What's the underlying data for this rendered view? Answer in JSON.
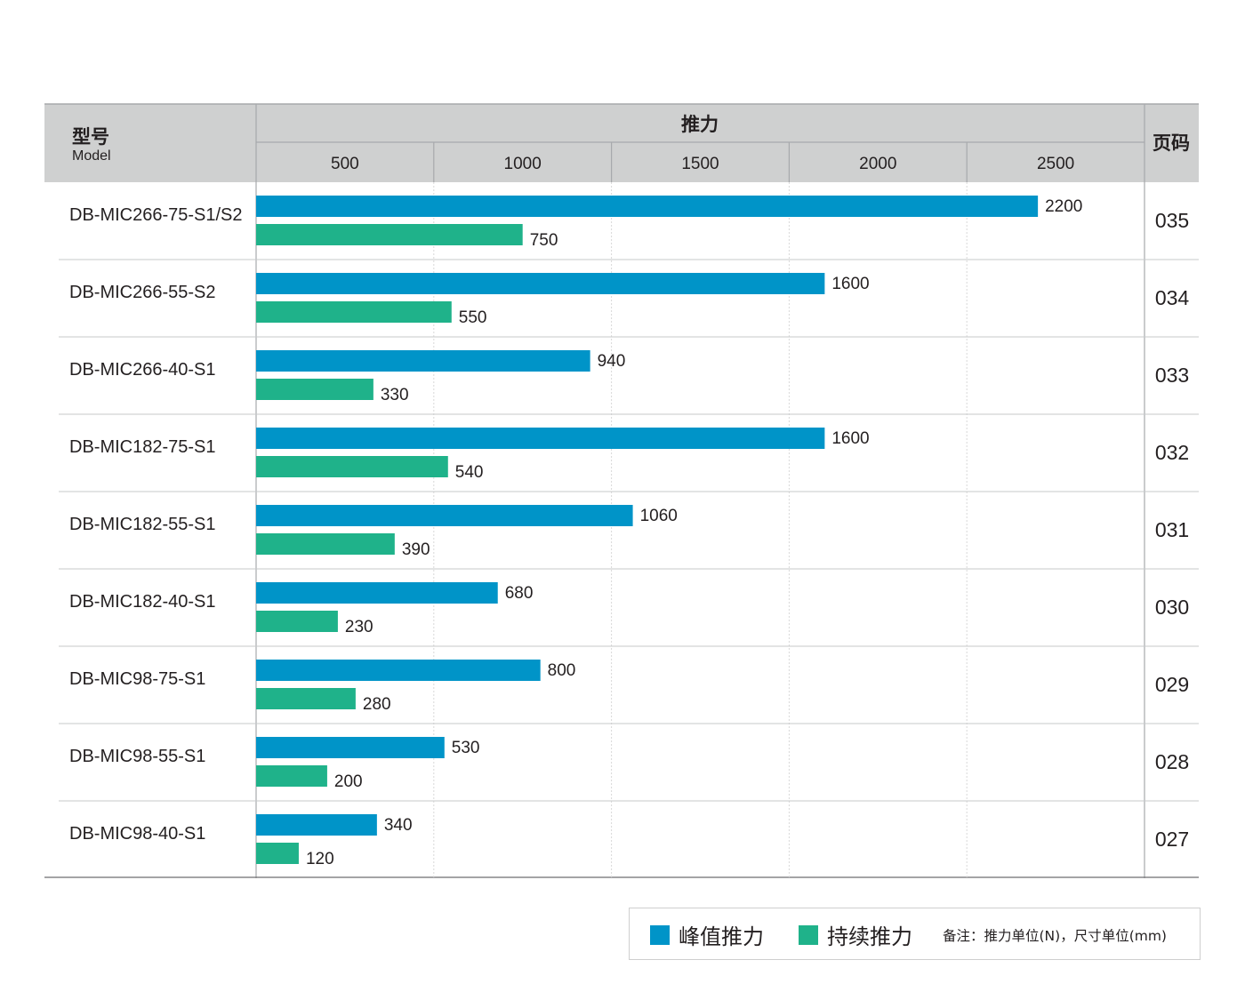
{
  "header": {
    "model_cn": "型号",
    "model_en": "Model",
    "thrust": "推力",
    "page": "页码"
  },
  "legend": {
    "peak": "峰值推力",
    "continuous": "持续推力",
    "note": "备注：推力单位(N)，尺寸单位(mm)"
  },
  "colors": {
    "peak": "#0094c8",
    "continuous": "#1fb28a",
    "header_bg": "#cfd0d0"
  },
  "chart_data": {
    "type": "bar",
    "orientation": "horizontal",
    "x_ticks": [
      500,
      1000,
      1500,
      2000,
      2500
    ],
    "xlim": [
      0,
      2500
    ],
    "grid": true,
    "series": [
      {
        "name": "峰值推力",
        "values": [
          2200,
          1600,
          940,
          1600,
          1060,
          680,
          800,
          530,
          340
        ]
      },
      {
        "name": "持续推力",
        "values": [
          750,
          550,
          330,
          540,
          390,
          230,
          280,
          200,
          120
        ]
      }
    ],
    "categories": [
      "DB-MIC266-75-S1/S2",
      "DB-MIC266-55-S2",
      "DB-MIC266-40-S1",
      "DB-MIC182-75-S1",
      "DB-MIC182-55-S1",
      "DB-MIC182-40-S1",
      "DB-MIC98-75-S1",
      "DB-MIC98-55-S1",
      "DB-MIC98-40-S1"
    ],
    "pages": [
      "035",
      "034",
      "033",
      "032",
      "031",
      "030",
      "029",
      "028",
      "027"
    ]
  }
}
